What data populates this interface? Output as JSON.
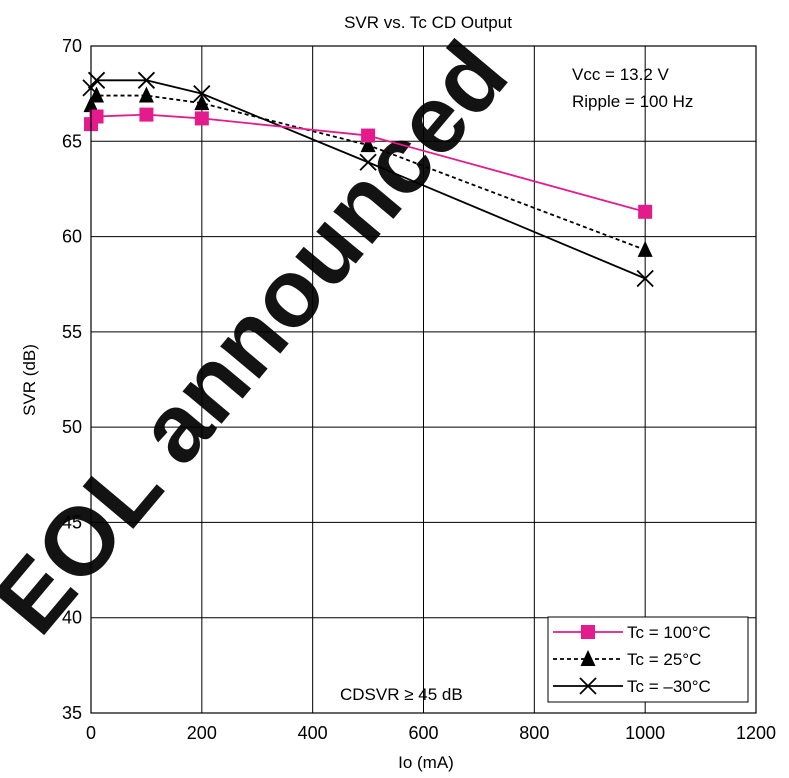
{
  "chart_data": {
    "type": "line",
    "title": "SVR vs. Tc  CD Output",
    "xlabel": "Io   (mA)",
    "ylabel": "SVR   (dB)",
    "xlim": [
      0,
      1200
    ],
    "ylim": [
      35,
      70
    ],
    "x_ticks": [
      0,
      200,
      400,
      600,
      800,
      1000,
      1200
    ],
    "y_ticks": [
      35,
      40,
      45,
      50,
      55,
      60,
      65,
      70
    ],
    "grid": true,
    "legend_position": "bottom-right",
    "annotations": {
      "vcc": "Vcc = 13.2 V",
      "ripple": "Ripple = 100 Hz",
      "spec": "CDSVR ≥ 45 dB"
    },
    "watermark": "EOL announced",
    "colors": {
      "tc100": "#e31b8d",
      "tc25": "#000000",
      "tcm30": "#000000",
      "watermark": "#e8001c",
      "grid": "#000000"
    },
    "series": [
      {
        "name": "Tc = 100°C",
        "marker": "square",
        "line_style": "solid",
        "x": [
          0,
          10,
          100,
          200,
          500,
          1000
        ],
        "y": [
          65.9,
          66.3,
          66.4,
          66.2,
          65.3,
          61.3
        ]
      },
      {
        "name": "Tc = 25°C",
        "marker": "triangle",
        "line_style": "dotted",
        "x": [
          0,
          10,
          100,
          200,
          500,
          1000
        ],
        "y": [
          66.9,
          67.4,
          67.4,
          67.0,
          64.8,
          59.3
        ]
      },
      {
        "name": "Tc = –30°C",
        "marker": "x",
        "line_style": "solid",
        "x": [
          0,
          10,
          100,
          200,
          500,
          1000
        ],
        "y": [
          67.8,
          68.2,
          68.2,
          67.5,
          63.9,
          57.8
        ]
      }
    ]
  }
}
